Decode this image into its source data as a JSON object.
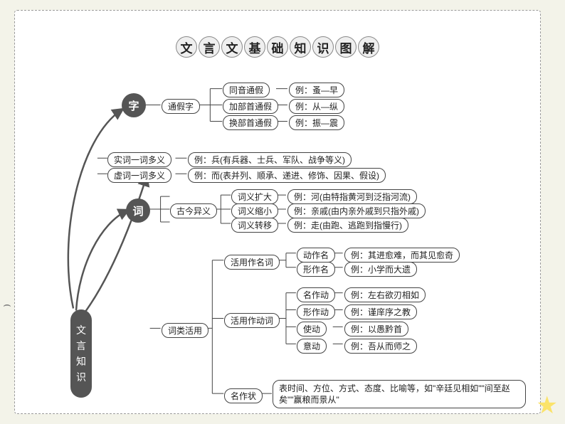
{
  "title_chars": [
    "文",
    "言",
    "文",
    "基",
    "础",
    "知",
    "识",
    "图",
    "解"
  ],
  "root": "文言知识",
  "colors": {
    "bg": "#f3f3e9",
    "card": "#ffffff",
    "dark": "#555555",
    "border": "#444444"
  },
  "nodes": {
    "zi": "字",
    "ci": "词",
    "tongjia": "通假字",
    "tjz1": "同音通假",
    "tjz1_ex": "例：蚤—早",
    "tjz2": "加部首通假",
    "tjz2_ex": "例：从—纵",
    "tjz3": "换部首通假",
    "tjz3_ex": "例：振—震",
    "shi_poly": "实词一词多义",
    "shi_poly_ex": "例：兵(有兵器、士兵、军队、战争等义)",
    "xu_poly": "虚词一词多义",
    "xu_poly_ex": "例：而(表并列、顺承、递进、修饰、因果、假设)",
    "gujin": "古今异义",
    "gj1": "词义扩大",
    "gj1_ex": "例：河(由特指黄河到泛指河流)",
    "gj2": "词义缩小",
    "gj2_ex": "例：亲戚(由内亲外戚到只指外戚)",
    "gj3": "词义转移",
    "gj3_ex": "例：走(由跑、逃跑到指慢行)",
    "cilei": "词类活用",
    "hy_ming": "活用作名词",
    "dzm": "动作名",
    "dzm_ex": "例：其进愈难，而其见愈奇",
    "xzm": "形作名",
    "xzm_ex": "例：小学而大遗",
    "hy_dong": "活用作动词",
    "mzd": "名作动",
    "mzd_ex": "例：左右欲刃相如",
    "xzd": "形作动",
    "xzd_ex": "例：谨庠序之教",
    "shid": "使动",
    "shid_ex": "例：以愚黔首",
    "yid": "意动",
    "yid_ex": "例：吾从而师之",
    "mzz": "名作状",
    "mzz_ex": "表时间、方位、方式、态度、比喻等，如\"辛廷见相如\"\"间至赵矣\"\"赢粮而景从\""
  }
}
